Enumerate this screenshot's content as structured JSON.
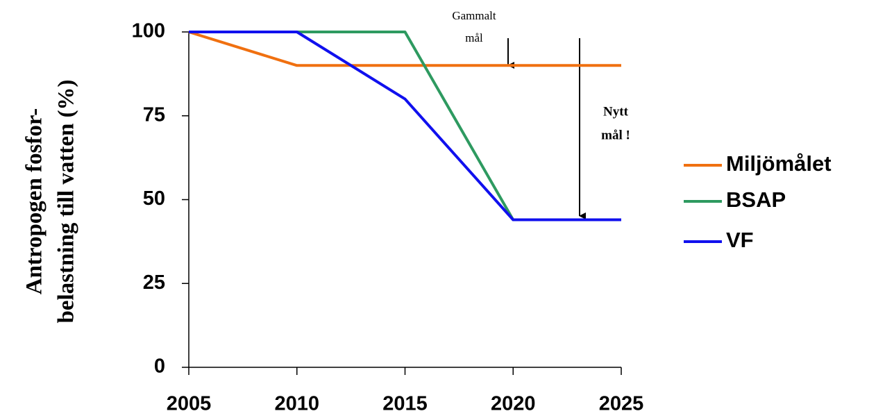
{
  "chart_data": {
    "type": "line",
    "ylabel": [
      "Antropogen fosfor-",
      "belastning till vatten (%)"
    ],
    "x": [
      2005,
      2010,
      2015,
      2020,
      2025
    ],
    "xlim": [
      2005,
      2025
    ],
    "xticks": [
      2005,
      2010,
      2015,
      2020,
      2025
    ],
    "ylim": [
      0,
      100
    ],
    "yticks": [
      0,
      25,
      50,
      75,
      100
    ],
    "grid": false,
    "legend": "right",
    "series": [
      {
        "name": "Miljömålet",
        "color": "#f07010",
        "values": [
          100,
          90,
          90,
          90,
          90
        ]
      },
      {
        "name": "BSAP",
        "color": "#2e9a60",
        "values": [
          100,
          100,
          100,
          44,
          44
        ]
      },
      {
        "name": "VF",
        "color": "#1010ee",
        "values": [
          100,
          100,
          80,
          44,
          44
        ]
      }
    ],
    "annotations": [
      {
        "lines": [
          "Gammalt",
          "mål"
        ]
      },
      {
        "lines": [
          "Nytt",
          "mål !"
        ]
      }
    ]
  }
}
